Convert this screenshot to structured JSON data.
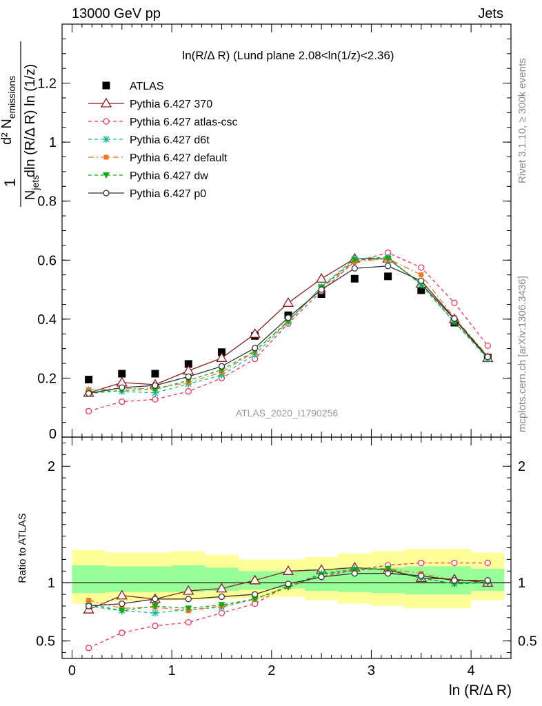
{
  "header": {
    "left": "13000 GeV pp",
    "right": "Jets"
  },
  "side_labels": {
    "rivet": "Rivet 3.1.10, ≥ 300k events",
    "mcplots": "mcplots.cern.ch [arXiv:1306.3436]"
  },
  "chart_data": {
    "type": "line",
    "title": "ln(R/Δ R) (Lund plane 2.08<ln(1/z)<2.36)",
    "watermark": "ATLAS_2020_I1790256",
    "xlabel": "ln (R/Δ R)",
    "ylabel_main": "1/N_jets d²N_emissions / dln(R/Δ R) ln(1/z)",
    "ylabel_ratio": "Ratio to ATLAS",
    "xlim": [
      -0.1,
      4.4
    ],
    "ylim_main": [
      0,
      1.4
    ],
    "ylim_ratio": [
      0.35,
      2.25
    ],
    "x_ticks": [
      "0",
      "1",
      "2",
      "3",
      "4"
    ],
    "y_ticks_main": [
      "0",
      "0.2",
      "0.4",
      "0.6",
      "0.8",
      "1",
      "1.2"
    ],
    "y_ticks_ratio": [
      "0.5",
      "1",
      "2"
    ],
    "legend_position": "top-left",
    "x": [
      0.167,
      0.5,
      0.833,
      1.167,
      1.5,
      1.833,
      2.167,
      2.5,
      2.833,
      3.167,
      3.5,
      3.833,
      4.167
    ],
    "bins": [
      0,
      0.333,
      0.667,
      1.0,
      1.333,
      1.667,
      2.0,
      2.333,
      2.667,
      3.0,
      3.333,
      3.667,
      4.0,
      4.333
    ],
    "band_outer": [
      [
        0.82,
        1.28
      ],
      [
        0.84,
        1.26
      ],
      [
        0.85,
        1.26
      ],
      [
        0.85,
        1.27
      ],
      [
        0.86,
        1.24
      ],
      [
        0.87,
        1.2
      ],
      [
        0.88,
        1.2
      ],
      [
        0.85,
        1.22
      ],
      [
        0.82,
        1.25
      ],
      [
        0.8,
        1.27
      ],
      [
        0.78,
        1.29
      ],
      [
        0.78,
        1.29
      ],
      [
        0.85,
        1.26
      ]
    ],
    "band_inner": [
      [
        0.91,
        1.15
      ],
      [
        0.92,
        1.14
      ],
      [
        0.92,
        1.14
      ],
      [
        0.92,
        1.15
      ],
      [
        0.93,
        1.13
      ],
      [
        0.94,
        1.1
      ],
      [
        0.95,
        1.1
      ],
      [
        0.93,
        1.12
      ],
      [
        0.92,
        1.13
      ],
      [
        0.91,
        1.13
      ],
      [
        0.9,
        1.14
      ],
      [
        0.9,
        1.14
      ],
      [
        0.93,
        1.12
      ]
    ],
    "series": [
      {
        "name": "ATLAS",
        "color": "#000000",
        "marker": "square",
        "dash": "none",
        "line": false,
        "values": [
          0.195,
          0.215,
          0.215,
          0.248,
          0.288,
          0.343,
          0.413,
          0.485,
          0.537,
          0.545,
          0.498,
          0.388,
          0.27
        ]
      },
      {
        "name": "Pythia 6.427 370",
        "color": "#8b1a1a",
        "marker": "tri-open",
        "dash": "none",
        "line": true,
        "values": [
          0.15,
          0.185,
          0.178,
          0.225,
          0.268,
          0.35,
          0.455,
          0.537,
          0.605,
          0.605,
          0.52,
          0.4,
          0.268
        ],
        "ratio": [
          0.77,
          0.89,
          0.86,
          0.93,
          0.95,
          1.02,
          1.1,
          1.11,
          1.13,
          1.11,
          1.04,
          1.03,
          1.0
        ]
      },
      {
        "name": "Pythia 6.427 atlas-csc",
        "color": "#ee3355",
        "marker": "circle-open",
        "dash": "5,4",
        "line": true,
        "values": [
          0.088,
          0.12,
          0.128,
          0.155,
          0.2,
          0.265,
          0.385,
          0.495,
          0.595,
          0.625,
          0.575,
          0.455,
          0.31
        ],
        "ratio": [
          0.44,
          0.57,
          0.63,
          0.66,
          0.74,
          0.82,
          0.98,
          1.05,
          1.11,
          1.15,
          1.17,
          1.17,
          1.17
        ]
      },
      {
        "name": "Pythia 6.427 d6t",
        "color": "#11bb99",
        "marker": "star",
        "dash": "5,4",
        "line": true,
        "values": [
          0.16,
          0.155,
          0.15,
          0.18,
          0.21,
          0.28,
          0.39,
          0.51,
          0.605,
          0.61,
          0.515,
          0.39,
          0.265
        ],
        "ratio": [
          0.82,
          0.76,
          0.74,
          0.77,
          0.79,
          0.86,
          0.97,
          1.08,
          1.12,
          1.12,
          1.04,
          0.99,
          1.01
        ]
      },
      {
        "name": "Pythia 6.427 default",
        "color": "#ee7722",
        "marker": "square-filled",
        "dash": "8,4,2,4",
        "line": true,
        "values": [
          0.16,
          0.165,
          0.165,
          0.185,
          0.22,
          0.29,
          0.395,
          0.505,
          0.595,
          0.605,
          0.55,
          0.405,
          0.275
        ],
        "ratio": [
          0.85,
          0.78,
          0.79,
          0.76,
          0.8,
          0.86,
          0.97,
          1.07,
          1.11,
          1.12,
          1.08,
          1.02,
          1.02
        ]
      },
      {
        "name": "Pythia 6.427 dw",
        "color": "#11aa11",
        "marker": "tri-down",
        "dash": "5,4",
        "line": true,
        "values": [
          0.148,
          0.158,
          0.162,
          0.192,
          0.228,
          0.292,
          0.392,
          0.508,
          0.6,
          0.605,
          0.52,
          0.39,
          0.27
        ],
        "ratio": [
          0.8,
          0.76,
          0.8,
          0.78,
          0.81,
          0.86,
          0.96,
          1.07,
          1.11,
          1.12,
          1.04,
          0.99,
          1.0
        ]
      },
      {
        "name": "Pythia 6.427 p0",
        "color": "#333333",
        "marker": "circle-open",
        "dash": "none",
        "line": true,
        "values": [
          0.148,
          0.168,
          0.175,
          0.205,
          0.24,
          0.302,
          0.405,
          0.5,
          0.572,
          0.58,
          0.53,
          0.402,
          0.272
        ],
        "ratio": [
          0.8,
          0.82,
          0.86,
          0.86,
          0.88,
          0.9,
          0.99,
          1.05,
          1.08,
          1.08,
          1.06,
          1.02,
          1.02
        ]
      }
    ]
  }
}
